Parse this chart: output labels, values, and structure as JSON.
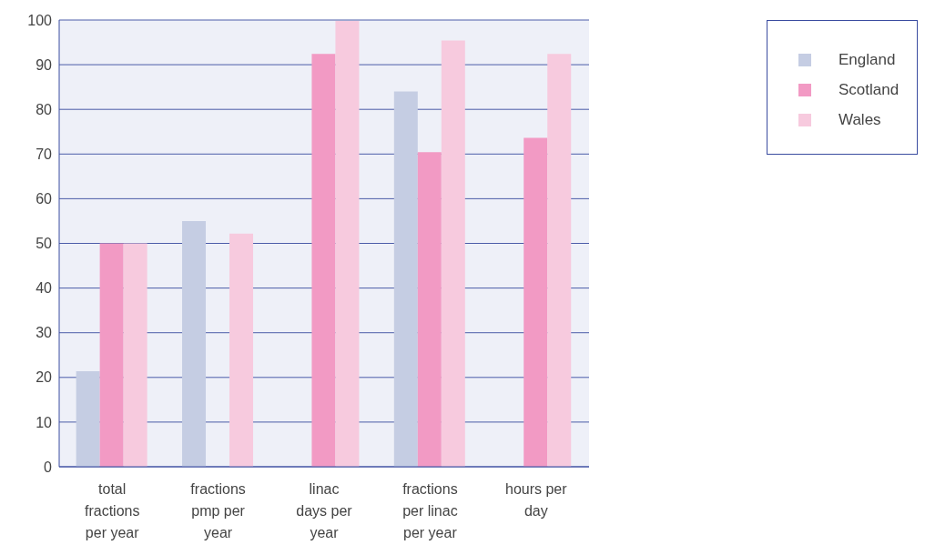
{
  "chart_data": {
    "type": "bar",
    "categories": [
      "total fractions per year",
      "fractions pmp per year",
      "linac days per year",
      "fractions per linac per year",
      "hours per day"
    ],
    "series": [
      {
        "name": "England",
        "color": "#c5cde3",
        "values": [
          21.4,
          55,
          null,
          84,
          null
        ]
      },
      {
        "name": "Scotland",
        "color": "#f29ac4",
        "values": [
          50,
          null,
          92.4,
          70.4,
          73.6
        ]
      },
      {
        "name": "Wales",
        "color": "#f7cade",
        "values": [
          50,
          52.2,
          99.8,
          95.4,
          92.4
        ]
      }
    ],
    "ylim": [
      0,
      100
    ],
    "yticks": [
      0,
      10,
      20,
      30,
      40,
      50,
      60,
      70,
      80,
      90,
      100
    ],
    "grid": "y",
    "legend": "top right"
  }
}
